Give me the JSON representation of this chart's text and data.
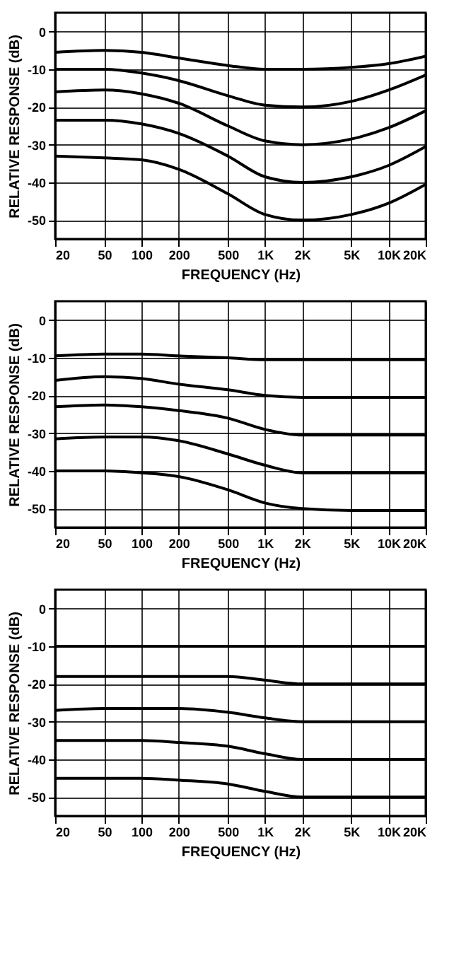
{
  "chart_data": [
    {
      "type": "line",
      "xlabel": "FREQUENCY (Hz)",
      "ylabel": "RELATIVE RESPONSE (dB)",
      "log": "x",
      "grid": true,
      "line_style": "solid",
      "marker": "none",
      "x": [
        20,
        50,
        100,
        200,
        500,
        1000,
        2000,
        5000,
        10000,
        20000
      ],
      "xlim": [
        20,
        20000
      ],
      "ylim": [
        -55,
        5
      ],
      "xticks": [
        20,
        50,
        100,
        200,
        500,
        {
          "value": 1000,
          "label": "1K"
        },
        {
          "value": 2000,
          "label": "2K"
        },
        {
          "value": 5000,
          "label": "5K"
        },
        {
          "value": 10000,
          "label": "10K"
        },
        {
          "value": 20000,
          "label": "20K"
        }
      ],
      "yticks": [
        -50,
        -40,
        -30,
        -20,
        -10,
        0
      ],
      "series": [
        {
          "color": "#000000",
          "values": [
            -5.5,
            -5,
            -5.5,
            -7,
            -9,
            -10,
            -10,
            -9.5,
            -8.5,
            -6.5
          ]
        },
        {
          "color": "#000000",
          "values": [
            -10,
            -10,
            -11,
            -13,
            -17,
            -19.5,
            -20,
            -18.5,
            -15.5,
            -11.5
          ]
        },
        {
          "color": "#000000",
          "values": [
            -16,
            -15.5,
            -16.5,
            -19,
            -25,
            -29,
            -30,
            -28.5,
            -25.5,
            -21
          ]
        },
        {
          "color": "#000000",
          "values": [
            -23.5,
            -23.5,
            -24.5,
            -27,
            -33,
            -38.5,
            -40,
            -38.5,
            -35.5,
            -30.5
          ]
        },
        {
          "color": "#000000",
          "values": [
            -33,
            -33.5,
            -34,
            -36.5,
            -43,
            -48.5,
            -50,
            -48.5,
            -45.5,
            -40.5
          ]
        }
      ]
    },
    {
      "type": "line",
      "xlabel": "FREQUENCY (Hz)",
      "ylabel": "RELATIVE RESPONSE (dB)",
      "log": "x",
      "grid": true,
      "line_style": "solid",
      "marker": "none",
      "x": [
        20,
        50,
        100,
        200,
        500,
        1000,
        2000,
        5000,
        10000,
        20000
      ],
      "xlim": [
        20,
        20000
      ],
      "ylim": [
        -55,
        5
      ],
      "xticks": [
        20,
        50,
        100,
        200,
        500,
        {
          "value": 1000,
          "label": "1K"
        },
        {
          "value": 2000,
          "label": "2K"
        },
        {
          "value": 5000,
          "label": "5K"
        },
        {
          "value": 10000,
          "label": "10K"
        },
        {
          "value": 20000,
          "label": "20K"
        }
      ],
      "yticks": [
        -50,
        -40,
        -30,
        -20,
        -10,
        0
      ],
      "series": [
        {
          "color": "#000000",
          "values": [
            -9.5,
            -9,
            -9,
            -9.5,
            -10,
            -10.5,
            -10.5,
            -10.5,
            -10.5,
            -10.5
          ]
        },
        {
          "color": "#000000",
          "values": [
            -16,
            -15,
            -15.5,
            -17,
            -18.5,
            -20,
            -20.5,
            -20.5,
            -20.5,
            -20.5
          ]
        },
        {
          "color": "#000000",
          "values": [
            -23,
            -22.5,
            -23,
            -24,
            -26,
            -29,
            -30.5,
            -30.5,
            -30.5,
            -30.5
          ]
        },
        {
          "color": "#000000",
          "values": [
            -31.5,
            -31,
            -31,
            -32,
            -35.5,
            -38.5,
            -40.5,
            -40.5,
            -40.5,
            -40.5
          ]
        },
        {
          "color": "#000000",
          "values": [
            -40,
            -40,
            -40.5,
            -41.5,
            -45,
            -48.5,
            -50,
            -50.5,
            -50.5,
            -50.5
          ]
        }
      ]
    },
    {
      "type": "line",
      "xlabel": "FREQUENCY (Hz)",
      "ylabel": "RELATIVE RESPONSE (dB)",
      "log": "x",
      "grid": true,
      "line_style": "solid",
      "marker": "none",
      "x": [
        20,
        50,
        100,
        200,
        500,
        1000,
        2000,
        5000,
        10000,
        20000
      ],
      "xlim": [
        20,
        20000
      ],
      "ylim": [
        -55,
        5
      ],
      "xticks": [
        20,
        50,
        100,
        200,
        500,
        {
          "value": 1000,
          "label": "1K"
        },
        {
          "value": 2000,
          "label": "2K"
        },
        {
          "value": 5000,
          "label": "5K"
        },
        {
          "value": 10000,
          "label": "10K"
        },
        {
          "value": 20000,
          "label": "20K"
        }
      ],
      "yticks": [
        -50,
        -40,
        -30,
        -20,
        -10,
        0
      ],
      "series": [
        {
          "color": "#000000",
          "values": [
            -10,
            -10,
            -10,
            -10,
            -10,
            -10,
            -10,
            -10,
            -10,
            -10
          ]
        },
        {
          "color": "#000000",
          "values": [
            -18,
            -18,
            -18,
            -18,
            -18,
            -19,
            -20,
            -20,
            -20,
            -20
          ]
        },
        {
          "color": "#000000",
          "values": [
            -27,
            -26.5,
            -26.5,
            -26.5,
            -27.5,
            -29,
            -30,
            -30,
            -30,
            -30
          ]
        },
        {
          "color": "#000000",
          "values": [
            -35,
            -35,
            -35,
            -35.5,
            -36.5,
            -38.5,
            -40,
            -40,
            -40,
            -40
          ]
        },
        {
          "color": "#000000",
          "values": [
            -45,
            -45,
            -45,
            -45.5,
            -46.5,
            -48.5,
            -50,
            -50,
            -50,
            -50
          ]
        }
      ]
    }
  ]
}
